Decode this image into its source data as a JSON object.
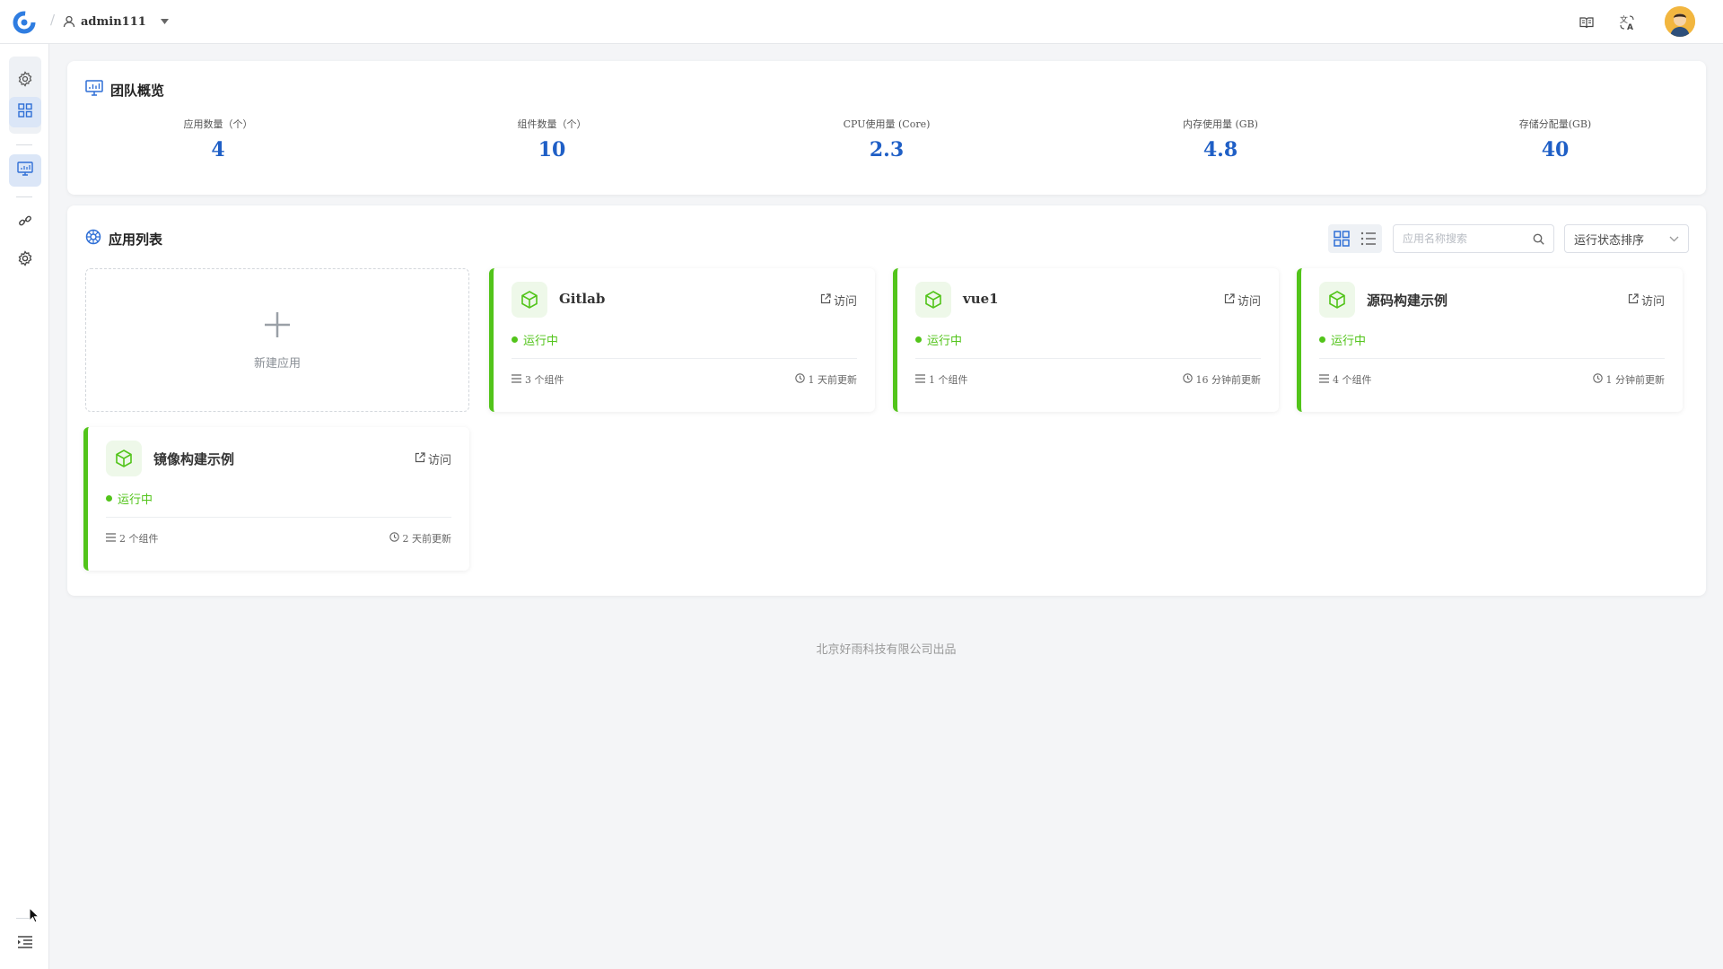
{
  "header": {
    "username": "admin111",
    "icons": [
      "rainbond-logo-icon",
      "user-icon",
      "caret-down-icon",
      "book-icon",
      "translate-icon",
      "avatar"
    ]
  },
  "rail": {
    "icons": [
      "gear-icon",
      "grid-icon",
      "monitor-icon",
      "link-icon",
      "settings-icon",
      "menu-expand-icon"
    ]
  },
  "overview": {
    "title": "团队概览",
    "stats": [
      {
        "label": "应用数量（个）",
        "value": "4"
      },
      {
        "label": "组件数量（个）",
        "value": "10"
      },
      {
        "label": "CPU使用量 (Core)",
        "value": "2.3"
      },
      {
        "label": "内存使用量 (GB)",
        "value": "4.8"
      },
      {
        "label": "存储分配量(GB)",
        "value": "40"
      }
    ]
  },
  "apps": {
    "title": "应用列表",
    "search_placeholder": "应用名称搜索",
    "sort_label": "运行状态排序",
    "new_app_label": "新建应用",
    "visit_label": "访问",
    "items": [
      {
        "name": "Gitlab",
        "status": "运行中",
        "components": "3 个组件",
        "updated": "1 天前更新"
      },
      {
        "name": "vue1",
        "status": "运行中",
        "components": "1 个组件",
        "updated": "16 分钟前更新"
      },
      {
        "name": "源码构建示例",
        "status": "运行中",
        "components": "4 个组件",
        "updated": "1 分钟前更新"
      },
      {
        "name": "镜像构建示例",
        "status": "运行中",
        "components": "2 个组件",
        "updated": "2 天前更新"
      }
    ]
  },
  "footer": {
    "text": "北京好雨科技有限公司出品"
  },
  "colors": {
    "accent": "#1f5fc6",
    "running": "#52c41a",
    "background": "#f4f5f7"
  }
}
